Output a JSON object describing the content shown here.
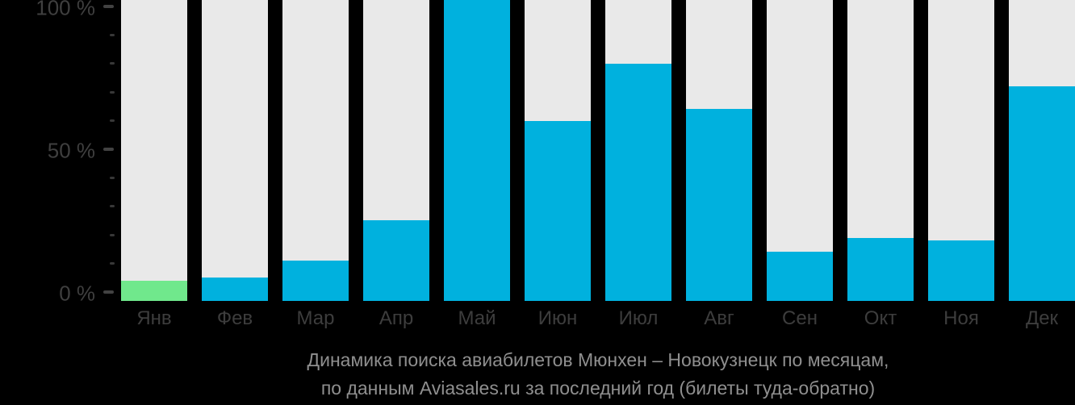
{
  "chart_data": {
    "type": "bar",
    "title_lines": [
      "Динамика поиска авиабилетов Мюнхен – Новокузнецк по месяцам,",
      "по данным Aviasales.ru за последний год (билеты туда-обратно)"
    ],
    "categories": [
      "Янв",
      "Фев",
      "Мар",
      "Апр",
      "Май",
      "Июн",
      "Июл",
      "Авг",
      "Сен",
      "Окт",
      "Ноя",
      "Дек"
    ],
    "values": [
      4,
      5,
      11,
      25,
      100,
      60,
      80,
      64,
      14,
      19,
      18,
      72
    ],
    "unit": "%",
    "ylim": [
      0,
      100
    ],
    "y_axis": {
      "major_ticks": [
        {
          "value": 100,
          "label": "100 %"
        },
        {
          "value": 50,
          "label": "50 %"
        },
        {
          "value": 0,
          "label": "0 %"
        }
      ],
      "minor_tick_values": [
        90,
        80,
        70,
        60,
        40,
        30,
        20,
        10
      ]
    },
    "highlight_index": 0,
    "legend_position": "none",
    "grid": false,
    "colors": {
      "bar": "#00b1de",
      "highlight_bar": "#70e88c",
      "track": "#e9e9e9",
      "background": "#000000",
      "axis_text": "#3f3f3f",
      "month_text": "#3d3d3d",
      "caption_text": "#8f8f8f"
    }
  }
}
